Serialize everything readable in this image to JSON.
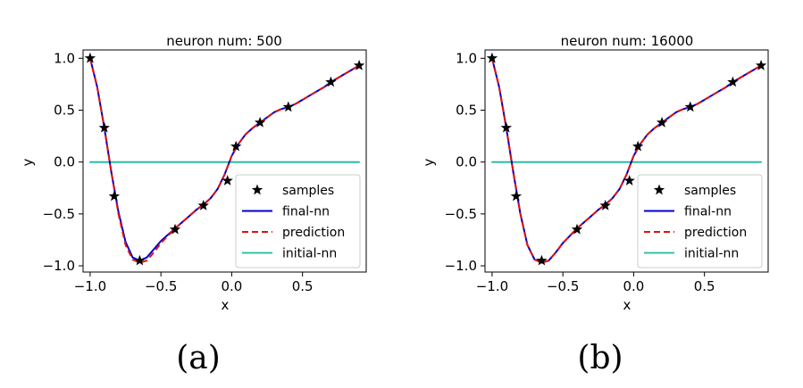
{
  "chart_data": [
    {
      "type": "line",
      "title": "neuron num: 500",
      "xlabel": "x",
      "ylabel": "y",
      "caption": "(a)",
      "xlim": [
        -1.05,
        0.95
      ],
      "ylim": [
        -1.06,
        1.08
      ],
      "xticks": [
        -1.0,
        -0.5,
        0.0,
        0.5
      ],
      "xtick_labels": [
        "−1.0",
        "−0.5",
        "0.0",
        "0.5"
      ],
      "yticks": [
        1.0,
        0.5,
        0.0,
        -0.5,
        -1.0
      ],
      "ytick_labels": [
        "1.0",
        "0.5",
        "0.0",
        "−0.5",
        "−1.0"
      ],
      "grid": false,
      "legend_position": "lower-right",
      "legend": [
        "samples",
        "final-nn",
        "prediction",
        "initial-nn"
      ],
      "colors": {
        "samples": "#000000",
        "final-nn": "#0000cc",
        "prediction": "#dd1111",
        "initial-nn": "#1abc9c"
      },
      "samples": {
        "x": [
          -1.0,
          -0.9,
          -0.83,
          -0.65,
          -0.4,
          -0.2,
          -0.03,
          0.03,
          0.2,
          0.4,
          0.7,
          0.9
        ],
        "y": [
          1.0,
          0.33,
          -0.33,
          -0.95,
          -0.65,
          -0.42,
          -0.18,
          0.15,
          0.38,
          0.53,
          0.77,
          0.93
        ]
      },
      "series": [
        {
          "name": "final-nn",
          "x": [
            -1.0,
            -0.95,
            -0.9,
            -0.85,
            -0.8,
            -0.75,
            -0.7,
            -0.65,
            -0.6,
            -0.55,
            -0.5,
            -0.45,
            -0.4,
            -0.35,
            -0.3,
            -0.25,
            -0.2,
            -0.15,
            -0.1,
            -0.05,
            0.0,
            0.05,
            0.1,
            0.15,
            0.2,
            0.25,
            0.3,
            0.35,
            0.4,
            0.45,
            0.5,
            0.55,
            0.6,
            0.65,
            0.7,
            0.75,
            0.8,
            0.85,
            0.9
          ],
          "y": [
            1.0,
            0.72,
            0.33,
            -0.1,
            -0.48,
            -0.77,
            -0.92,
            -0.95,
            -0.92,
            -0.84,
            -0.76,
            -0.7,
            -0.64,
            -0.58,
            -0.52,
            -0.46,
            -0.41,
            -0.35,
            -0.26,
            -0.12,
            0.06,
            0.18,
            0.27,
            0.33,
            0.38,
            0.43,
            0.48,
            0.51,
            0.53,
            0.56,
            0.6,
            0.64,
            0.68,
            0.72,
            0.77,
            0.81,
            0.85,
            0.89,
            0.93
          ]
        },
        {
          "name": "prediction",
          "x": [
            -1.0,
            -0.95,
            -0.9,
            -0.85,
            -0.8,
            -0.75,
            -0.7,
            -0.65,
            -0.6,
            -0.55,
            -0.5,
            -0.45,
            -0.4,
            -0.35,
            -0.3,
            -0.25,
            -0.2,
            -0.15,
            -0.1,
            -0.05,
            0.0,
            0.05,
            0.1,
            0.15,
            0.2,
            0.25,
            0.3,
            0.35,
            0.4,
            0.45,
            0.5,
            0.55,
            0.6,
            0.65,
            0.7,
            0.75,
            0.8,
            0.85,
            0.9
          ],
          "y": [
            1.0,
            0.72,
            0.33,
            -0.1,
            -0.5,
            -0.8,
            -0.94,
            -0.97,
            -0.95,
            -0.87,
            -0.78,
            -0.71,
            -0.64,
            -0.58,
            -0.52,
            -0.46,
            -0.41,
            -0.35,
            -0.26,
            -0.12,
            0.06,
            0.18,
            0.27,
            0.33,
            0.38,
            0.43,
            0.48,
            0.51,
            0.53,
            0.56,
            0.6,
            0.64,
            0.68,
            0.72,
            0.77,
            0.81,
            0.85,
            0.89,
            0.93
          ]
        },
        {
          "name": "initial-nn",
          "x": [
            -1.0,
            0.9
          ],
          "y": [
            0.0,
            0.0
          ]
        }
      ]
    },
    {
      "type": "line",
      "title": "neuron num: 16000",
      "xlabel": "x",
      "ylabel": "y",
      "caption": "(b)",
      "xlim": [
        -1.05,
        0.95
      ],
      "ylim": [
        -1.06,
        1.08
      ],
      "xticks": [
        -1.0,
        -0.5,
        0.0,
        0.5
      ],
      "xtick_labels": [
        "−1.0",
        "−0.5",
        "0.0",
        "0.5"
      ],
      "yticks": [
        1.0,
        0.5,
        0.0,
        -0.5,
        -1.0
      ],
      "ytick_labels": [
        "1.0",
        "0.5",
        "0.0",
        "−0.5",
        "−1.0"
      ],
      "grid": false,
      "legend_position": "lower-right",
      "legend": [
        "samples",
        "final-nn",
        "prediction",
        "initial-nn"
      ],
      "colors": {
        "samples": "#000000",
        "final-nn": "#0000cc",
        "prediction": "#dd1111",
        "initial-nn": "#1abc9c"
      },
      "samples": {
        "x": [
          -1.0,
          -0.9,
          -0.83,
          -0.65,
          -0.4,
          -0.2,
          -0.03,
          0.03,
          0.2,
          0.4,
          0.7,
          0.9
        ],
        "y": [
          1.0,
          0.33,
          -0.33,
          -0.95,
          -0.65,
          -0.42,
          -0.18,
          0.15,
          0.38,
          0.53,
          0.77,
          0.93
        ]
      },
      "series": [
        {
          "name": "final-nn",
          "x": [
            -1.0,
            -0.95,
            -0.9,
            -0.85,
            -0.8,
            -0.75,
            -0.7,
            -0.65,
            -0.6,
            -0.55,
            -0.5,
            -0.45,
            -0.4,
            -0.35,
            -0.3,
            -0.25,
            -0.2,
            -0.15,
            -0.1,
            -0.05,
            0.0,
            0.05,
            0.1,
            0.15,
            0.2,
            0.25,
            0.3,
            0.35,
            0.4,
            0.45,
            0.5,
            0.55,
            0.6,
            0.65,
            0.7,
            0.75,
            0.8,
            0.85,
            0.9
          ],
          "y": [
            1.0,
            0.72,
            0.33,
            -0.1,
            -0.5,
            -0.8,
            -0.94,
            -0.97,
            -0.95,
            -0.87,
            -0.78,
            -0.71,
            -0.64,
            -0.58,
            -0.52,
            -0.46,
            -0.41,
            -0.35,
            -0.26,
            -0.12,
            0.06,
            0.18,
            0.27,
            0.33,
            0.38,
            0.43,
            0.48,
            0.51,
            0.53,
            0.56,
            0.6,
            0.64,
            0.68,
            0.72,
            0.77,
            0.81,
            0.85,
            0.89,
            0.93
          ]
        },
        {
          "name": "prediction",
          "x": [
            -1.0,
            -0.95,
            -0.9,
            -0.85,
            -0.8,
            -0.75,
            -0.7,
            -0.65,
            -0.6,
            -0.55,
            -0.5,
            -0.45,
            -0.4,
            -0.35,
            -0.3,
            -0.25,
            -0.2,
            -0.15,
            -0.1,
            -0.05,
            0.0,
            0.05,
            0.1,
            0.15,
            0.2,
            0.25,
            0.3,
            0.35,
            0.4,
            0.45,
            0.5,
            0.55,
            0.6,
            0.65,
            0.7,
            0.75,
            0.8,
            0.85,
            0.9
          ],
          "y": [
            1.0,
            0.72,
            0.33,
            -0.1,
            -0.5,
            -0.8,
            -0.94,
            -0.97,
            -0.95,
            -0.87,
            -0.78,
            -0.71,
            -0.64,
            -0.58,
            -0.52,
            -0.46,
            -0.41,
            -0.35,
            -0.26,
            -0.12,
            0.06,
            0.18,
            0.27,
            0.33,
            0.38,
            0.43,
            0.48,
            0.51,
            0.53,
            0.56,
            0.6,
            0.64,
            0.68,
            0.72,
            0.77,
            0.81,
            0.85,
            0.89,
            0.93
          ]
        },
        {
          "name": "initial-nn",
          "x": [
            -1.0,
            0.9
          ],
          "y": [
            0.0,
            0.0
          ]
        }
      ]
    }
  ]
}
